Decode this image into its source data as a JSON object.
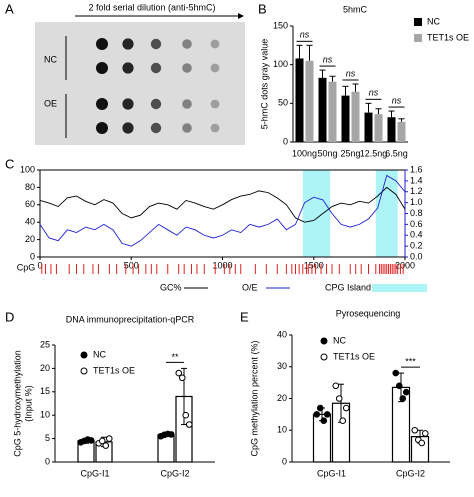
{
  "panel_a": {
    "panel": "A",
    "title": "2 fold serial dilution (anti-5hmC)",
    "rows": [
      "NC",
      "OE"
    ]
  },
  "chart_data": [
    {
      "type": "bar",
      "panel": "B",
      "title": "5hmC",
      "ylabel": "5-hmC dots gray value",
      "categories": [
        "100ng",
        "50ng",
        "25ng",
        "12.5ng",
        "6.5ng"
      ],
      "series": [
        {
          "name": "NC",
          "color": "#000000",
          "values": [
            108,
            83,
            60,
            38,
            32
          ],
          "errors": [
            17,
            10,
            12,
            12,
            8
          ]
        },
        {
          "name": "TET1s OE",
          "color": "#a6a6a6",
          "values": [
            105,
            78,
            65,
            36,
            26
          ],
          "errors": [
            20,
            7,
            10,
            7,
            4
          ]
        }
      ],
      "annotations": [
        "ns",
        "ns",
        "ns",
        "ns",
        "ns"
      ],
      "ylim": [
        0,
        150
      ],
      "yticks": [
        0,
        50,
        100,
        150
      ]
    },
    {
      "type": "line",
      "panel": "C",
      "xlabel": "CpG",
      "x": [
        0,
        50,
        100,
        150,
        200,
        250,
        300,
        350,
        400,
        450,
        500,
        550,
        600,
        650,
        700,
        750,
        800,
        850,
        900,
        950,
        1000,
        1050,
        1100,
        1150,
        1200,
        1250,
        1300,
        1350,
        1400,
        1450,
        1500,
        1550,
        1600,
        1650,
        1700,
        1750,
        1800,
        1850,
        1900,
        1950,
        2000
      ],
      "series": [
        {
          "name": "GC%",
          "color": "#000000",
          "values": [
            65,
            62,
            58,
            68,
            70,
            64,
            60,
            66,
            62,
            50,
            45,
            48,
            58,
            62,
            60,
            55,
            65,
            62,
            58,
            55,
            60,
            66,
            70,
            72,
            76,
            74,
            68,
            60,
            45,
            40,
            42,
            50,
            58,
            62,
            60,
            64,
            62,
            70,
            80,
            72,
            55
          ]
        },
        {
          "name": "O/E",
          "color": "#1f1fd0",
          "axis": "y2",
          "values": [
            0.6,
            0.35,
            0.3,
            0.5,
            0.45,
            0.55,
            0.5,
            0.6,
            0.5,
            0.25,
            0.2,
            0.3,
            0.45,
            0.6,
            0.5,
            0.4,
            0.55,
            0.5,
            0.4,
            0.35,
            0.4,
            0.5,
            0.45,
            0.6,
            0.55,
            0.6,
            0.7,
            0.5,
            0.6,
            1.0,
            1.1,
            1.05,
            0.8,
            0.6,
            0.55,
            0.6,
            0.7,
            0.9,
            1.5,
            1.4,
            1.2
          ]
        }
      ],
      "islands": [
        [
          1440,
          1590
        ],
        [
          1840,
          1960
        ]
      ],
      "island_name": "CPG Island",
      "island_color": "#aef4f7",
      "cpg_positions": [
        10,
        30,
        60,
        90,
        160,
        200,
        240,
        290,
        320,
        380,
        420,
        470,
        510,
        540,
        580,
        610,
        640,
        700,
        760,
        790,
        830,
        860,
        900,
        960,
        1010,
        1040,
        1070,
        1100,
        1180,
        1240,
        1300,
        1350,
        1380,
        1400,
        1420,
        1440,
        1460,
        1470,
        1490,
        1510,
        1540,
        1570,
        1600,
        1640,
        1700,
        1730,
        1760,
        1800,
        1840,
        1860,
        1870,
        1880,
        1890,
        1900,
        1910,
        1920,
        1930,
        1940,
        1950,
        1960,
        1975,
        1990
      ],
      "cpg_color": "#e02020",
      "xlim": [
        0,
        2000
      ],
      "xticks": [
        0,
        500,
        1000,
        1500,
        2000
      ],
      "ylim": [
        0,
        100
      ],
      "yticks": [
        0,
        20,
        40,
        60,
        80,
        100
      ],
      "y2lim": [
        0,
        1.6
      ],
      "y2ticks": [
        {
          "value": 0,
          "label": "0.0"
        },
        0.2,
        0.4,
        0.6,
        0.8,
        {
          "value": 1,
          "label": "1.0"
        },
        1.2,
        1.4,
        1.6
      ]
    },
    {
      "type": "bar",
      "panel": "D",
      "title": "DNA immunoprecipitation-qPCR",
      "ylabel": [
        "CpG 5-hydroxymethylation",
        "(Input %)"
      ],
      "categories": [
        "CpG-I1",
        "CpG-I2"
      ],
      "series": [
        {
          "name": "NC",
          "marker": "filled",
          "values": [
            4.5,
            5.8
          ],
          "errors": [
            0.5,
            0.3
          ],
          "points": [
            [
              4.2,
              4.5,
              4.8,
              4.6
            ],
            [
              5.5,
              5.8,
              6.0,
              5.9
            ]
          ]
        },
        {
          "name": "TET1s OE",
          "marker": "open",
          "values": [
            4.3,
            14
          ],
          "errors": [
            1,
            6
          ],
          "points": [
            [
              4.0,
              4.5,
              3.5,
              5.0
            ],
            [
              19,
              18,
              10,
              8
            ]
          ]
        }
      ],
      "significance": {
        "category": 1,
        "label": "**"
      },
      "ylim": [
        0,
        25
      ],
      "yticks": [
        0,
        5,
        10,
        15,
        20,
        25
      ]
    },
    {
      "type": "bar",
      "panel": "E",
      "title": "Pyrosequencing",
      "ylabel": [
        "CpG methylation percent (%)"
      ],
      "categories": [
        "CpG-I1",
        "CpG-I2"
      ],
      "series": [
        {
          "name": "NC",
          "marker": "filled",
          "values": [
            15,
            23.5
          ],
          "errors": [
            2,
            4.5
          ],
          "points": [
            [
              15,
              17,
              13,
              15
            ],
            [
              28,
              24,
              20,
              22
            ]
          ]
        },
        {
          "name": "TET1s OE",
          "marker": "open",
          "values": [
            18.5,
            8
          ],
          "errors": [
            6,
            2
          ],
          "points": [
            [
              24,
              20,
              13,
              17
            ],
            [
              10,
              7,
              6,
              9
            ]
          ]
        }
      ],
      "significance": {
        "category": 1,
        "label": "***"
      },
      "ylim": [
        0,
        40
      ],
      "yticks": [
        0,
        10,
        20,
        30,
        40
      ]
    }
  ]
}
